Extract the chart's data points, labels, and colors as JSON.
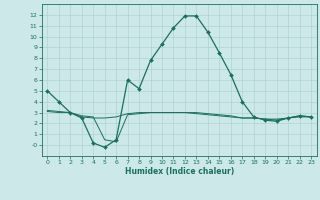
{
  "xlabel": "Humidex (Indice chaleur)",
  "xlim": [
    -0.5,
    23.5
  ],
  "ylim": [
    -1,
    13
  ],
  "xticks": [
    0,
    1,
    2,
    3,
    4,
    5,
    6,
    7,
    8,
    9,
    10,
    11,
    12,
    13,
    14,
    15,
    16,
    17,
    18,
    19,
    20,
    21,
    22,
    23
  ],
  "yticks": [
    0,
    1,
    2,
    3,
    4,
    5,
    6,
    7,
    8,
    9,
    10,
    11,
    12
  ],
  "background_color": "#cce8e8",
  "line_color": "#1a7060",
  "grid_color": "#aacccc",
  "series1_x": [
    0,
    1,
    2,
    3,
    4,
    5,
    6,
    7,
    8,
    9,
    10,
    11,
    12,
    13,
    14,
    15,
    16,
    17,
    18,
    19,
    20,
    21,
    22,
    23
  ],
  "series1_y": [
    5.0,
    4.0,
    3.0,
    2.5,
    0.2,
    -0.2,
    0.5,
    6.0,
    5.2,
    7.8,
    9.3,
    10.8,
    11.9,
    11.9,
    10.4,
    8.5,
    6.5,
    4.0,
    2.6,
    2.3,
    2.2,
    2.5,
    2.7,
    2.6
  ],
  "series2_x": [
    0,
    1,
    2,
    3,
    4,
    5,
    6,
    7,
    8,
    9,
    10,
    11,
    12,
    13,
    14,
    15,
    16,
    17,
    18,
    19,
    20,
    21,
    22,
    23
  ],
  "series2_y": [
    3.2,
    3.1,
    3.0,
    2.6,
    2.5,
    2.5,
    2.6,
    2.9,
    3.0,
    3.0,
    3.0,
    3.0,
    3.0,
    2.9,
    2.8,
    2.7,
    2.6,
    2.5,
    2.5,
    2.4,
    2.4,
    2.5,
    2.6,
    2.6
  ],
  "series3_x": [
    0,
    1,
    2,
    3,
    4,
    5,
    6,
    7,
    8,
    9,
    10,
    11,
    12,
    13,
    14,
    15,
    16,
    17,
    18,
    19,
    20,
    21,
    22,
    23
  ],
  "series3_y": [
    3.1,
    3.0,
    3.0,
    2.7,
    2.6,
    0.5,
    0.3,
    2.8,
    2.9,
    3.0,
    3.0,
    3.0,
    3.0,
    3.0,
    2.9,
    2.8,
    2.7,
    2.5,
    2.5,
    2.4,
    2.3,
    2.5,
    2.7,
    2.6
  ],
  "xlabel_fontsize": 5.5,
  "tick_fontsize": 4.5
}
